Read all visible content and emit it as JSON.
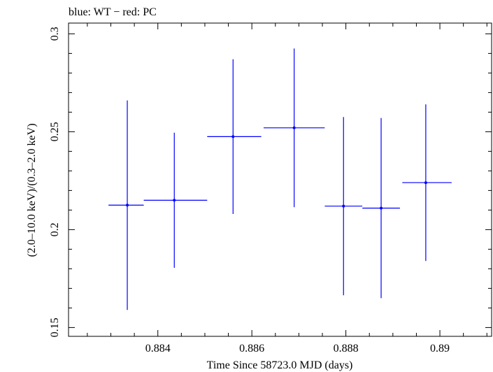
{
  "chart_data": {
    "type": "scatter",
    "title": "blue: WT − red: PC",
    "xlabel": "Time Since 58723.0 MJD (days)",
    "ylabel": "(2.0–10.0 keV)/(0.3–2.0 keV)",
    "xlim": [
      0.8821,
      0.8911
    ],
    "ylim": [
      0.1455,
      0.3055
    ],
    "xticks": [
      0.884,
      0.886,
      0.888,
      0.89
    ],
    "xtick_labels": [
      "0.884",
      "0.886",
      "0.888",
      "0.89"
    ],
    "yticks": [
      0.15,
      0.2,
      0.25,
      0.3
    ],
    "ytick_labels": [
      "0.15",
      "0.2",
      "0.25",
      "0.3"
    ],
    "grid": false,
    "legend": "none",
    "color": "#0000ff",
    "series": [
      {
        "points": [
          {
            "x": 0.88335,
            "xerr_lo": 0.0004,
            "xerr_hi": 0.00035,
            "y": 0.2125,
            "yerr_lo": 0.0535,
            "yerr_hi": 0.0535
          },
          {
            "x": 0.88435,
            "xerr_lo": 0.00065,
            "xerr_hi": 0.0007,
            "y": 0.215,
            "yerr_lo": 0.0345,
            "yerr_hi": 0.0345
          },
          {
            "x": 0.8856,
            "xerr_lo": 0.00055,
            "xerr_hi": 0.0006,
            "y": 0.2475,
            "yerr_lo": 0.0395,
            "yerr_hi": 0.0395
          },
          {
            "x": 0.8869,
            "xerr_lo": 0.00065,
            "xerr_hi": 0.00065,
            "y": 0.252,
            "yerr_lo": 0.0405,
            "yerr_hi": 0.0405
          },
          {
            "x": 0.88795,
            "xerr_lo": 0.0004,
            "xerr_hi": 0.0004,
            "y": 0.212,
            "yerr_lo": 0.0455,
            "yerr_hi": 0.0455
          },
          {
            "x": 0.88875,
            "xerr_lo": 0.0004,
            "xerr_hi": 0.0004,
            "y": 0.211,
            "yerr_lo": 0.046,
            "yerr_hi": 0.046
          },
          {
            "x": 0.8897,
            "xerr_lo": 0.0005,
            "xerr_hi": 0.00055,
            "y": 0.224,
            "yerr_lo": 0.04,
            "yerr_hi": 0.04
          }
        ]
      }
    ]
  }
}
